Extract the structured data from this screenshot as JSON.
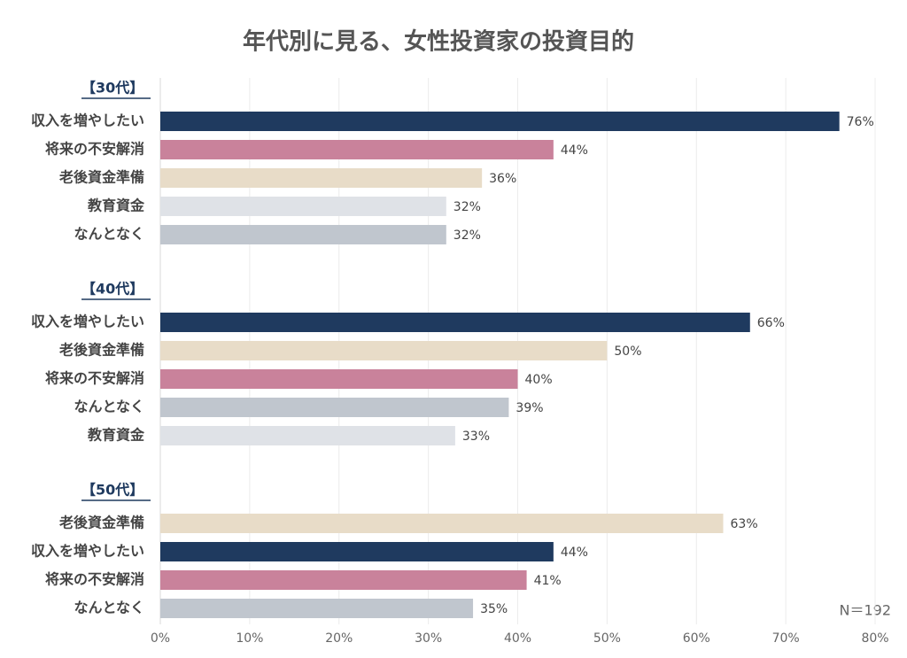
{
  "chart_data": {
    "type": "bar",
    "orientation": "horizontal",
    "title": "年代別に見る、女性投資家の投資目的",
    "note": "N＝192",
    "groups": [
      {
        "label": "【30代】",
        "categories": [
          "収入を増やしたい",
          "将来の不安解消",
          "老後資金準備",
          "教育資金",
          "なんとなく"
        ],
        "values": [
          76,
          44,
          36,
          32,
          32
        ],
        "value_labels": [
          "76%",
          "44%",
          "36%",
          "32%",
          "32%"
        ],
        "colors": [
          "#1f3a5f",
          "#c9829b",
          "#e8dcc8",
          "#dfe2e7",
          "#c0c6ce"
        ]
      },
      {
        "label": "【40代】",
        "categories": [
          "収入を増やしたい",
          "老後資金準備",
          "将来の不安解消",
          "なんとなく",
          "教育資金"
        ],
        "values": [
          66,
          50,
          40,
          39,
          33
        ],
        "value_labels": [
          "66%",
          "50%",
          "40%",
          "39%",
          "33%"
        ],
        "colors": [
          "#1f3a5f",
          "#e8dcc8",
          "#c9829b",
          "#c0c6ce",
          "#dfe2e7"
        ]
      },
      {
        "label": "【50代】",
        "categories": [
          "老後資金準備",
          "収入を増やしたい",
          "将来の不安解消",
          "なんとなく"
        ],
        "values": [
          63,
          44,
          41,
          35
        ],
        "value_labels": [
          "63%",
          "44%",
          "41%",
          "35%"
        ],
        "colors": [
          "#e8dcc8",
          "#1f3a5f",
          "#c9829b",
          "#c0c6ce"
        ]
      }
    ],
    "xlim": [
      0,
      80
    ],
    "xticks": [
      {
        "value": 0,
        "label": "0%"
      },
      {
        "value": 10,
        "label": "10%"
      },
      {
        "value": 20,
        "label": "20%"
      },
      {
        "value": 30,
        "label": "30%"
      },
      {
        "value": 40,
        "label": "40%"
      },
      {
        "value": 50,
        "label": "50%"
      },
      {
        "value": 60,
        "label": "60%"
      },
      {
        "value": 70,
        "label": "70%"
      },
      {
        "value": 80,
        "label": "80%"
      }
    ],
    "grid": true
  }
}
